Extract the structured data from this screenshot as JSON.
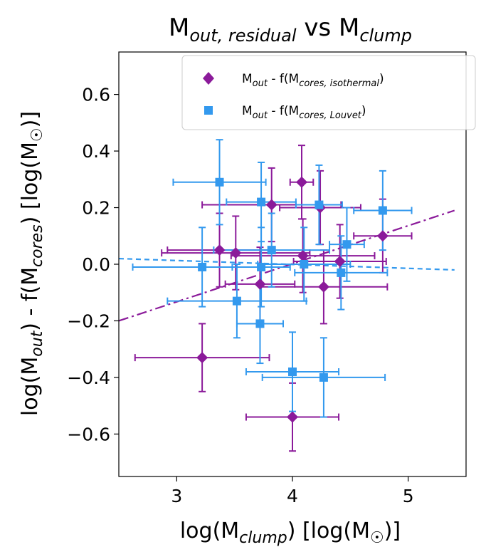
{
  "chart_data": {
    "type": "scatter",
    "title": {
      "main": "M",
      "sub1": "out, residual",
      "mid": " vs M",
      "sub2": "clump"
    },
    "xlabel": {
      "pre": "log(M",
      "sub": "clump",
      "post": ") [log(M",
      "sun": "☉",
      "end": ")]"
    },
    "ylabel": {
      "pre": "log(M",
      "sub1": "out",
      "mid": ") - f(M",
      "sub2": "cores",
      "post": ") [log(M",
      "sun": "☉",
      "end": ")]"
    },
    "xlim": [
      2.5,
      5.5
    ],
    "ylim": [
      -0.75,
      0.75
    ],
    "xticks": [
      3,
      4,
      5
    ],
    "xtick_labels": [
      "3",
      "4",
      "5"
    ],
    "yticks": [
      -0.6,
      -0.4,
      -0.2,
      0.0,
      0.2,
      0.4,
      0.6
    ],
    "ytick_labels": [
      "−0.6",
      "−0.4",
      "−0.2",
      "0.0",
      "0.2",
      "0.4",
      "0.6"
    ],
    "grid": false,
    "legend_position": "top-right",
    "series": [
      {
        "legend": {
          "pre": "M",
          "sub1": "out",
          "mid": " - f(M",
          "sub2": "cores, isothermal",
          "end": ")"
        },
        "color": "#8b1a9a",
        "marker": "diamond",
        "points": [
          {
            "x": 3.22,
            "y": -0.33,
            "xerr": 0.58,
            "yerr": 0.12
          },
          {
            "x": 3.37,
            "y": 0.05,
            "xerr": 0.45,
            "yerr": 0.13
          },
          {
            "x": 3.51,
            "y": 0.04,
            "xerr": 0.64,
            "yerr": 0.13
          },
          {
            "x": 3.72,
            "y": -0.07,
            "xerr": 0.3,
            "yerr": 0.13
          },
          {
            "x": 3.82,
            "y": 0.21,
            "xerr": 0.6,
            "yerr": 0.13
          },
          {
            "x": 4.08,
            "y": 0.29,
            "xerr": 0.1,
            "yerr": 0.13
          },
          {
            "x": 4.09,
            "y": 0.03,
            "xerr": 0.62,
            "yerr": 0.13
          },
          {
            "x": 4.0,
            "y": -0.54,
            "xerr": 0.4,
            "yerr": 0.12
          },
          {
            "x": 4.24,
            "y": 0.2,
            "xerr": 0.35,
            "yerr": 0.13
          },
          {
            "x": 4.27,
            "y": -0.08,
            "xerr": 0.55,
            "yerr": 0.13
          },
          {
            "x": 4.41,
            "y": 0.01,
            "xerr": 0.4,
            "yerr": 0.13
          },
          {
            "x": 4.78,
            "y": 0.1,
            "xerr": 0.25,
            "yerr": 0.13
          }
        ]
      },
      {
        "legend": {
          "pre": "M",
          "sub1": "out",
          "mid": " - f(M",
          "sub2": "cores, Louvet",
          "end": ")"
        },
        "color": "#3399ee",
        "marker": "square",
        "points": [
          {
            "x": 3.22,
            "y": -0.01,
            "xerr": 0.6,
            "yerr": 0.14
          },
          {
            "x": 3.37,
            "y": 0.29,
            "xerr": 0.4,
            "yerr": 0.15
          },
          {
            "x": 3.52,
            "y": -0.13,
            "xerr": 0.6,
            "yerr": 0.13
          },
          {
            "x": 3.72,
            "y": -0.21,
            "xerr": 0.2,
            "yerr": 0.14
          },
          {
            "x": 3.73,
            "y": 0.22,
            "xerr": 0.3,
            "yerr": 0.14
          },
          {
            "x": 3.82,
            "y": 0.05,
            "xerr": 0.5,
            "yerr": 0.13
          },
          {
            "x": 3.73,
            "y": -0.01,
            "xerr": 0.25,
            "yerr": 0.14
          },
          {
            "x": 4.0,
            "y": -0.38,
            "xerr": 0.4,
            "yerr": 0.14
          },
          {
            "x": 4.1,
            "y": 0.0,
            "xerr": 0.4,
            "yerr": 0.13
          },
          {
            "x": 4.23,
            "y": 0.21,
            "xerr": 0.2,
            "yerr": 0.14
          },
          {
            "x": 4.27,
            "y": -0.4,
            "xerr": 0.53,
            "yerr": 0.14
          },
          {
            "x": 4.42,
            "y": -0.03,
            "xerr": 0.4,
            "yerr": 0.13
          },
          {
            "x": 4.47,
            "y": 0.07,
            "xerr": 0.15,
            "yerr": 0.13
          },
          {
            "x": 4.78,
            "y": 0.19,
            "xerr": 0.25,
            "yerr": 0.14
          }
        ]
      }
    ],
    "fit_lines": [
      {
        "color": "#8b1a9a",
        "style": "dashdot",
        "x": [
          2.5,
          5.4
        ],
        "y": [
          -0.2,
          0.19
        ]
      },
      {
        "color": "#3399ee",
        "style": "dashed",
        "x": [
          2.5,
          5.4
        ],
        "y": [
          0.02,
          -0.02
        ]
      }
    ]
  }
}
